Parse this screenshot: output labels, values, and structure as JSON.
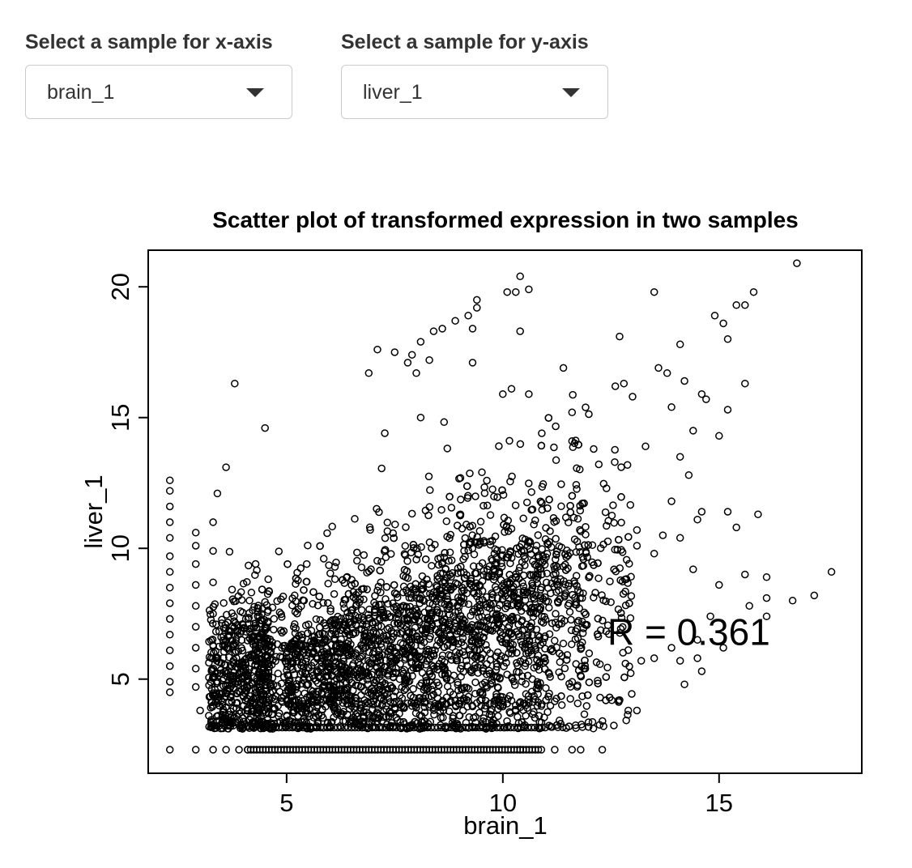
{
  "controls": {
    "x_select": {
      "label": "Select a sample for x-axis",
      "value": "brain_1"
    },
    "y_select": {
      "label": "Select a sample for y-axis",
      "value": "liver_1"
    }
  },
  "chart_data": {
    "type": "scatter",
    "title": "Scatter plot of transformed expression in two samples",
    "xlabel": "brain_1",
    "ylabel": "liver_1",
    "xlim": [
      1.8,
      18.3
    ],
    "ylim": [
      1.4,
      21.4
    ],
    "xticks": [
      5,
      10,
      15
    ],
    "yticks": [
      5,
      10,
      15,
      20
    ],
    "grid": false,
    "marker": "open-circle",
    "annotation": {
      "text": "R = 0.361",
      "x": 14.3,
      "y": 6.8
    },
    "points": [
      [
        16.8,
        20.9
      ],
      [
        10.4,
        20.4
      ],
      [
        10.6,
        19.9
      ],
      [
        10.1,
        19.8
      ],
      [
        10.3,
        19.8
      ],
      [
        13.5,
        19.8
      ],
      [
        15.8,
        19.8
      ],
      [
        9.4,
        19.5
      ],
      [
        15.4,
        19.3
      ],
      [
        15.6,
        19.3
      ],
      [
        9.4,
        19.2
      ],
      [
        9.2,
        18.9
      ],
      [
        14.9,
        18.9
      ],
      [
        8.9,
        18.7
      ],
      [
        15.1,
        18.6
      ],
      [
        9.3,
        18.4
      ],
      [
        8.6,
        18.4
      ],
      [
        8.4,
        18.3
      ],
      [
        10.4,
        18.3
      ],
      [
        15.2,
        18.0
      ],
      [
        8.1,
        17.9
      ],
      [
        12.7,
        18.1
      ],
      [
        14.1,
        17.8
      ],
      [
        7.1,
        17.6
      ],
      [
        7.5,
        17.5
      ],
      [
        11.4,
        16.9
      ],
      [
        13.6,
        16.9
      ],
      [
        9.3,
        17.1
      ],
      [
        7.8,
        17.1
      ],
      [
        7.9,
        17.4
      ],
      [
        8.3,
        17.2
      ],
      [
        3.8,
        16.3
      ],
      [
        6.9,
        16.7
      ],
      [
        8.0,
        16.7
      ],
      [
        13.8,
        16.7
      ],
      [
        12.8,
        16.3
      ],
      [
        14.2,
        16.4
      ],
      [
        15.6,
        16.3
      ],
      [
        12.6,
        16.2
      ],
      [
        10.2,
        16.1
      ],
      [
        10.6,
        15.9
      ],
      [
        10.0,
        15.9
      ],
      [
        14.6,
        15.9
      ],
      [
        13.0,
        15.8
      ],
      [
        14.7,
        15.7
      ],
      [
        13.9,
        15.4
      ],
      [
        15.2,
        15.3
      ],
      [
        11.6,
        15.2
      ],
      [
        8.1,
        15.0
      ],
      [
        15.0,
        14.3
      ],
      [
        14.4,
        14.5
      ],
      [
        4.5,
        14.6
      ],
      [
        12.1,
        13.8
      ],
      [
        13.3,
        13.9
      ],
      [
        14.1,
        13.5
      ],
      [
        11.6,
        14.1
      ],
      [
        10.9,
        14.4
      ],
      [
        14.3,
        12.8
      ],
      [
        13.9,
        11.8
      ],
      [
        15.2,
        11.4
      ],
      [
        15.9,
        11.3
      ],
      [
        14.6,
        11.4
      ],
      [
        14.5,
        11.1
      ],
      [
        15.4,
        10.8
      ],
      [
        13.7,
        10.5
      ],
      [
        14.1,
        10.4
      ],
      [
        13.1,
        10.7
      ],
      [
        13.1,
        10.1
      ],
      [
        13.5,
        9.8
      ],
      [
        14.4,
        9.2
      ],
      [
        15.0,
        8.6
      ],
      [
        16.1,
        8.9
      ],
      [
        15.6,
        9.0
      ],
      [
        17.6,
        9.1
      ],
      [
        17.2,
        8.2
      ],
      [
        16.7,
        8.0
      ],
      [
        16.1,
        8.1
      ],
      [
        15.7,
        7.8
      ],
      [
        16.1,
        7.4
      ],
      [
        14.8,
        7.4
      ],
      [
        14.5,
        6.5
      ],
      [
        13.9,
        6.2
      ],
      [
        14.5,
        5.8
      ],
      [
        14.1,
        5.7
      ],
      [
        15.1,
        6.2
      ],
      [
        14.6,
        5.3
      ],
      [
        14.2,
        4.8
      ],
      [
        13.2,
        5.7
      ],
      [
        13.5,
        5.8
      ],
      [
        12.7,
        4.2
      ],
      [
        12.9,
        3.8
      ],
      [
        13.1,
        3.8
      ],
      [
        12.3,
        2.3
      ],
      [
        11.8,
        2.3
      ],
      [
        11.6,
        2.3
      ],
      [
        11.2,
        2.3
      ],
      [
        10.4,
        2.3
      ],
      [
        2.3,
        2.3
      ],
      [
        2.9,
        2.3
      ],
      [
        3.3,
        2.3
      ],
      [
        3.6,
        2.3
      ],
      [
        3.9,
        2.3
      ],
      [
        4.1,
        2.3
      ],
      [
        2.3,
        4.5
      ],
      [
        2.3,
        4.9
      ],
      [
        2.3,
        5.5
      ],
      [
        2.3,
        6.1
      ],
      [
        2.3,
        6.7
      ],
      [
        2.3,
        7.3
      ],
      [
        2.3,
        7.9
      ],
      [
        2.3,
        8.5
      ],
      [
        2.3,
        9.1
      ],
      [
        2.3,
        9.7
      ],
      [
        2.3,
        10.4
      ],
      [
        2.3,
        11.0
      ],
      [
        2.3,
        11.6
      ],
      [
        2.3,
        12.2
      ],
      [
        2.3,
        12.6
      ],
      [
        2.9,
        4.7
      ],
      [
        2.9,
        5.4
      ],
      [
        2.9,
        6.2
      ],
      [
        2.9,
        7.0
      ],
      [
        2.9,
        7.8
      ],
      [
        2.9,
        8.6
      ],
      [
        2.9,
        9.4
      ],
      [
        2.9,
        10.1
      ],
      [
        2.9,
        10.6
      ],
      [
        3.3,
        4.0
      ],
      [
        3.3,
        5.1
      ],
      [
        3.3,
        6.3
      ],
      [
        3.3,
        7.5
      ],
      [
        3.3,
        8.7
      ],
      [
        3.3,
        9.9
      ],
      [
        3.3,
        11.0
      ],
      [
        3.4,
        12.1
      ],
      [
        3.6,
        13.1
      ],
      [
        3.0,
        3.8
      ],
      [
        3.2,
        3.6
      ],
      [
        3.6,
        3.5
      ]
    ]
  }
}
